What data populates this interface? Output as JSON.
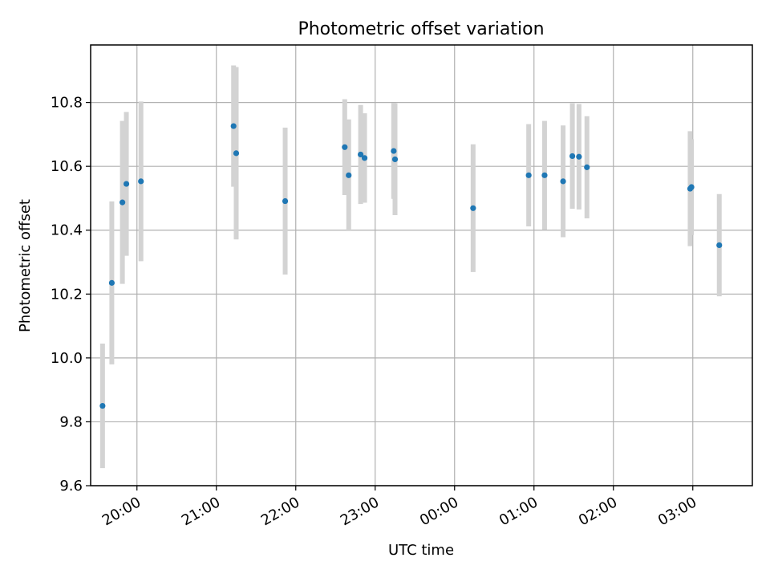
{
  "chart_data": {
    "type": "scatter",
    "title": "Photometric offset variation",
    "xlabel": "UTC time",
    "ylabel": "Photometric offset",
    "grid": true,
    "x_axis": {
      "scale": "time",
      "range": [
        "19:25",
        "03:45"
      ],
      "ticks": [
        "20:00",
        "21:00",
        "22:00",
        "23:00",
        "00:00",
        "01:00",
        "02:00",
        "03:00"
      ]
    },
    "y_axis": {
      "range": [
        9.6,
        10.98
      ],
      "ticks": [
        "9.6",
        "9.8",
        "10.0",
        "10.2",
        "10.4",
        "10.6",
        "10.8"
      ]
    },
    "series": [
      {
        "color": "#1f77b4",
        "error_bar_color": "#d3d3d3",
        "points": [
          {
            "x": "19:34",
            "y": 9.85,
            "err": 0.195
          },
          {
            "x": "19:41",
            "y": 10.235,
            "err": 0.255
          },
          {
            "x": "19:49",
            "y": 10.487,
            "err": 0.255
          },
          {
            "x": "19:52",
            "y": 10.545,
            "err": 0.225
          },
          {
            "x": "20:03",
            "y": 10.553,
            "err": 0.25
          },
          {
            "x": "21:13",
            "y": 10.726,
            "err": 0.19
          },
          {
            "x": "21:15",
            "y": 10.641,
            "err": 0.27
          },
          {
            "x": "21:52",
            "y": 10.491,
            "err": 0.23
          },
          {
            "x": "22:37",
            "y": 10.66,
            "err": 0.15
          },
          {
            "x": "22:40",
            "y": 10.572,
            "err": 0.175
          },
          {
            "x": "22:49",
            "y": 10.637,
            "err": 0.155
          },
          {
            "x": "22:52",
            "y": 10.626,
            "err": 0.14
          },
          {
            "x": "23:14",
            "y": 10.648,
            "err": 0.15
          },
          {
            "x": "23:15",
            "y": 10.622,
            "err": 0.175
          },
          {
            "x": "00:14",
            "y": 10.469,
            "err": 0.2
          },
          {
            "x": "00:56",
            "y": 10.572,
            "err": 0.16
          },
          {
            "x": "01:08",
            "y": 10.572,
            "err": 0.17
          },
          {
            "x": "01:22",
            "y": 10.553,
            "err": 0.175
          },
          {
            "x": "01:29",
            "y": 10.632,
            "err": 0.165
          },
          {
            "x": "01:34",
            "y": 10.63,
            "err": 0.165
          },
          {
            "x": "01:40",
            "y": 10.597,
            "err": 0.16
          },
          {
            "x": "02:58",
            "y": 10.53,
            "err": 0.18
          },
          {
            "x": "02:59",
            "y": 10.535,
            "err": 0.15
          },
          {
            "x": "03:20",
            "y": 10.353,
            "err": 0.16
          }
        ]
      }
    ]
  }
}
